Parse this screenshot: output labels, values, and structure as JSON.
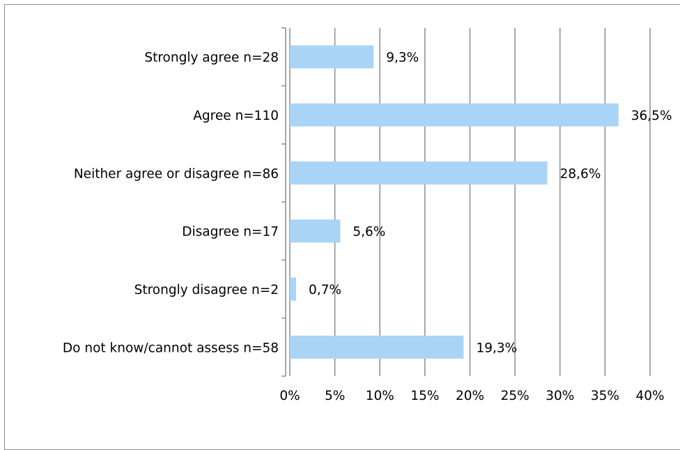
{
  "chart_data": {
    "type": "bar",
    "orientation": "horizontal",
    "categories": [
      "Strongly agree n=28",
      "Agree n=110",
      "Neither agree or disagree n=86",
      "Disagree n=17",
      "Strongly disagree n=2",
      "Do not know/cannot assess n=58"
    ],
    "values": [
      9.3,
      36.5,
      28.6,
      5.6,
      0.7,
      19.3
    ],
    "data_labels": [
      "9,3%",
      "36,5%",
      "28,6%",
      "5,6%",
      "0,7%",
      "19,3%"
    ],
    "x_ticks": [
      "0%",
      "5%",
      "10%",
      "15%",
      "20%",
      "25%",
      "30%",
      "35%",
      "40%"
    ],
    "xlim": [
      0,
      40
    ],
    "grid": "vertical",
    "bar_color": "#a9d4f5",
    "grid_color": "#8c8c8c",
    "legend": "none"
  }
}
